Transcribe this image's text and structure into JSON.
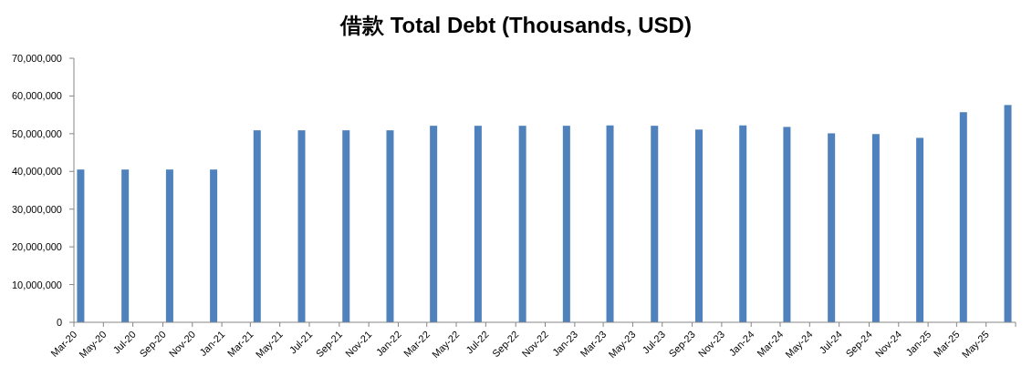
{
  "chart_data": {
    "type": "bar",
    "title": "借款 Total Debt (Thousands, USD)",
    "x": [
      "2020-03-15",
      "2020-06-15",
      "2020-09-15",
      "2020-12-15",
      "2021-03-15",
      "2021-06-15",
      "2021-09-15",
      "2021-12-15",
      "2022-03-15",
      "2022-06-15",
      "2022-09-15",
      "2022-12-15",
      "2023-03-15",
      "2023-06-15",
      "2023-09-15",
      "2023-12-15",
      "2024-03-15",
      "2024-06-15",
      "2024-09-15",
      "2024-12-15",
      "2025-03-15",
      "2025-06-15"
    ],
    "values": [
      40500000,
      40500000,
      40500000,
      40500000,
      50900000,
      50900000,
      50900000,
      50900000,
      52100000,
      52100000,
      52100000,
      52100000,
      52200000,
      52100000,
      51100000,
      52200000,
      51800000,
      50100000,
      49900000,
      48900000,
      55700000,
      57600000
    ],
    "color": "#4f81bd",
    "ylim": [
      0,
      70000000
    ],
    "yticks": [
      0,
      {
        "value": 10000000,
        "label": "10,000,000"
      },
      {
        "value": 20000000,
        "label": "20,000,000"
      },
      {
        "value": 30000000,
        "label": "30,000,000"
      },
      {
        "value": 40000000,
        "label": "40,000,000"
      },
      {
        "value": 50000000,
        "label": "50,000,000"
      },
      {
        "value": 60000000,
        "label": "60,000,000"
      },
      {
        "value": 70000000,
        "label": "70,000,000"
      }
    ],
    "xlim": [
      "2020-03-01",
      "2025-07-01"
    ],
    "xticks": [
      {
        "value": "2020-03-01",
        "label": "Mar-20"
      },
      {
        "value": "2020-05-01",
        "label": "May-20"
      },
      {
        "value": "2020-07-01",
        "label": "Jul-20"
      },
      {
        "value": "2020-09-01",
        "label": "Sep-20"
      },
      {
        "value": "2020-11-01",
        "label": "Nov-20"
      },
      {
        "value": "2021-01-01",
        "label": "Jan-21"
      },
      {
        "value": "2021-03-01",
        "label": "Mar-21"
      },
      {
        "value": "2021-05-01",
        "label": "May-21"
      },
      {
        "value": "2021-07-01",
        "label": "Jul-21"
      },
      {
        "value": "2021-09-01",
        "label": "Sep-21"
      },
      {
        "value": "2021-11-01",
        "label": "Nov-21"
      },
      {
        "value": "2022-01-01",
        "label": "Jan-22"
      },
      {
        "value": "2022-03-01",
        "label": "Mar-22"
      },
      {
        "value": "2022-05-01",
        "label": "May-22"
      },
      {
        "value": "2022-07-01",
        "label": "Jul-22"
      },
      {
        "value": "2022-09-01",
        "label": "Sep-22"
      },
      {
        "value": "2022-11-01",
        "label": "Nov-22"
      },
      {
        "value": "2023-01-01",
        "label": "Jan-23"
      },
      {
        "value": "2023-03-01",
        "label": "Mar-23"
      },
      {
        "value": "2023-05-01",
        "label": "May-23"
      },
      {
        "value": "2023-07-01",
        "label": "Jul-23"
      },
      {
        "value": "2023-09-01",
        "label": "Sep-23"
      },
      {
        "value": "2023-11-01",
        "label": "Nov-23"
      },
      {
        "value": "2024-01-01",
        "label": "Jan-24"
      },
      {
        "value": "2024-03-01",
        "label": "Mar-24"
      },
      {
        "value": "2024-05-01",
        "label": "May-24"
      },
      {
        "value": "2024-07-01",
        "label": "Jul-24"
      },
      {
        "value": "2024-09-01",
        "label": "Sep-24"
      },
      {
        "value": "2024-11-01",
        "label": "Nov-24"
      },
      {
        "value": "2025-01-01",
        "label": "Jan-25"
      },
      {
        "value": "2025-03-01",
        "label": "Mar-25"
      },
      {
        "value": "2025-05-01",
        "label": "May-25"
      },
      {
        "value": "2025-07-01",
        "label": null
      }
    ],
    "grid": false
  }
}
